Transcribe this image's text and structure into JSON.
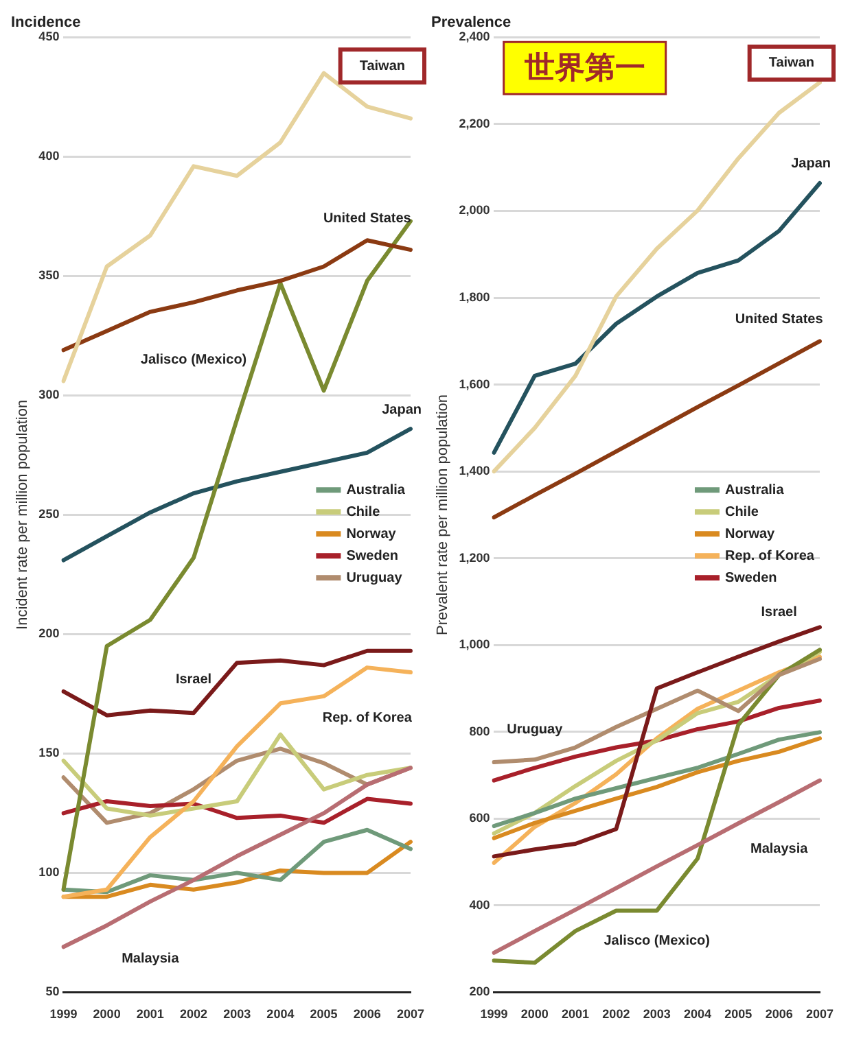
{
  "chart_data": [
    {
      "type": "line",
      "title": "Incidence",
      "ylabel": "Incident rate per million population",
      "categories": [
        "1999",
        "2000",
        "2001",
        "2002",
        "2003",
        "2004",
        "2005",
        "2006",
        "2007"
      ],
      "ylim": [
        50,
        450
      ],
      "yticks": [
        50,
        100,
        150,
        200,
        250,
        300,
        350,
        400,
        450
      ],
      "grid": "y",
      "legend": "right",
      "marker": "none",
      "line_style": "solid",
      "series": [
        {
          "color": "#e6d29c",
          "values": [
            306,
            354,
            367,
            396,
            392,
            406,
            435,
            421,
            416
          ]
        },
        {
          "color": "#8b3a12",
          "values": [
            319,
            327,
            335,
            339,
            344,
            348,
            354,
            365,
            361
          ]
        },
        {
          "color": "#7a8a30",
          "values": [
            93,
            195,
            206,
            232,
            290,
            347,
            302,
            348,
            373
          ]
        },
        {
          "color": "#24525e",
          "values": [
            231,
            241,
            251,
            259,
            264,
            268,
            272,
            276,
            286
          ]
        },
        {
          "color": "#7a1a1a",
          "values": [
            176,
            166,
            168,
            167,
            188,
            189,
            187,
            193,
            193
          ]
        },
        {
          "color": "#f5b25a",
          "values": [
            90,
            93,
            115,
            130,
            153,
            171,
            174,
            186,
            184
          ]
        },
        {
          "color": "#b86d72",
          "values": [
            69,
            78,
            88,
            97,
            107,
            116,
            125,
            137,
            144
          ]
        },
        {
          "name": "Australia",
          "color": "#6f9a7a",
          "values": [
            93,
            92,
            99,
            97,
            100,
            97,
            113,
            118,
            110
          ]
        },
        {
          "name": "Chile",
          "color": "#c8cc7a",
          "values": [
            147,
            127,
            124,
            127,
            130,
            158,
            135,
            141,
            144
          ]
        },
        {
          "name": "Norway",
          "color": "#d98a20",
          "values": [
            90,
            90,
            95,
            93,
            96,
            101,
            100,
            100,
            113
          ]
        },
        {
          "name": "Sweden",
          "color": "#a8202a",
          "values": [
            125,
            130,
            128,
            129,
            123,
            124,
            121,
            131,
            129
          ]
        },
        {
          "name": "Uruguay",
          "color": "#b08c6e",
          "values": [
            140,
            121,
            125,
            135,
            147,
            152,
            146,
            137,
            144
          ]
        }
      ],
      "annotations": [
        "Taiwan",
        "United States",
        "Jalisco (Mexico)",
        "Japan",
        "Israel",
        "Rep. of Korea",
        "Malaysia"
      ]
    },
    {
      "type": "line",
      "title": "Prevalence",
      "ylabel": "Prevalent rate per million population",
      "categories": [
        "1999",
        "2000",
        "2001",
        "2002",
        "2003",
        "2004",
        "2005",
        "2006",
        "2007"
      ],
      "ylim": [
        200,
        2400
      ],
      "yticks": [
        200,
        400,
        600,
        800,
        {
          "value": 1000,
          "label": "1,000"
        },
        {
          "value": 1200,
          "label": "1,200"
        },
        {
          "value": 1400,
          "label": "1,400"
        },
        {
          "value": 1600,
          "label": "1,600"
        },
        {
          "value": 1800,
          "label": "1,800"
        },
        {
          "value": 2000,
          "label": "2,000"
        },
        {
          "value": 2200,
          "label": "2,200"
        },
        {
          "value": 2400,
          "label": "2,400"
        }
      ],
      "grid": "y",
      "legend": "right",
      "marker": "none",
      "line_style": "solid",
      "series": [
        {
          "color": "#e6d29c",
          "values": [
            1400,
            1500,
            1620,
            1803,
            1913,
            2001,
            2121,
            2226,
            2296
          ]
        },
        {
          "color": "#24525e",
          "values": [
            1443,
            1620,
            1648,
            1740,
            1803,
            1857,
            1886,
            1954,
            2064
          ]
        },
        {
          "color": "#8b3a12",
          "values": [
            1294,
            1345,
            1395,
            1446,
            1497,
            1548,
            1598,
            1649,
            1700
          ]
        },
        {
          "color": "#7a1a1a",
          "values": [
            513,
            529,
            542,
            576,
            900,
            937,
            973,
            1008,
            1041
          ]
        },
        {
          "color": "#b08c6e",
          "values": [
            730,
            736,
            764,
            811,
            853,
            895,
            848,
            931,
            968
          ]
        },
        {
          "color": "#b86d72",
          "values": [
            291,
            341,
            390,
            440,
            490,
            539,
            589,
            638,
            688
          ]
        },
        {
          "color": "#7a8a30",
          "values": [
            273,
            268,
            341,
            388,
            388,
            508,
            816,
            931,
            989
          ]
        },
        {
          "name": "Australia",
          "color": "#6f9a7a",
          "values": [
            583,
            613,
            646,
            670,
            694,
            717,
            749,
            782,
            799
          ]
        },
        {
          "name": "Chile",
          "color": "#c8cc7a",
          "values": [
            566,
            613,
            675,
            733,
            780,
            843,
            869,
            931,
            984
          ]
        },
        {
          "name": "Norway",
          "color": "#d98a20",
          "values": [
            555,
            590,
            618,
            646,
            673,
            707,
            733,
            754,
            785
          ]
        },
        {
          "name": "Rep. of Korea",
          "color": "#f5b25a",
          "values": [
            498,
            581,
            636,
            702,
            785,
            853,
            895,
            937,
            973
          ]
        },
        {
          "name": "Sweden",
          "color": "#a8202a",
          "values": [
            688,
            717,
            743,
            764,
            780,
            806,
            824,
            855,
            872
          ]
        }
      ],
      "annotations": [
        "Taiwan",
        "世界第一",
        "Japan",
        "United States",
        "Israel",
        "Uruguay",
        "Malaysia",
        "Jalisco (Mexico)"
      ]
    }
  ]
}
